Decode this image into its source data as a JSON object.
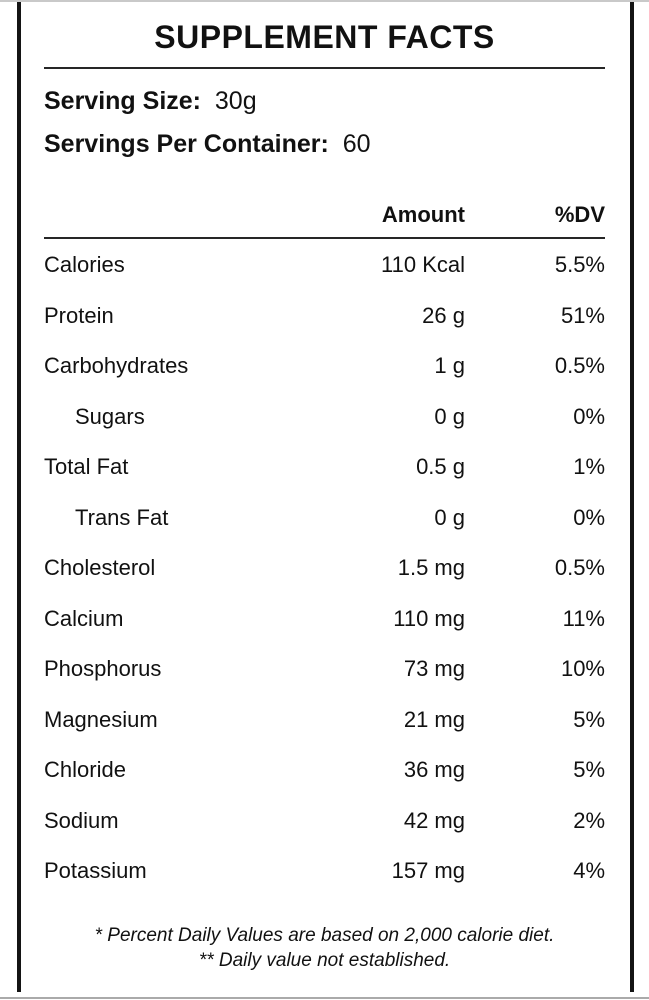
{
  "panel": {
    "title": "SUPPLEMENT FACTS",
    "serving_size": {
      "label": "Serving Size:",
      "value": "30g"
    },
    "servings_per_container": {
      "label": "Servings Per Container:",
      "value": "60"
    },
    "columns": {
      "amount": "Amount",
      "dv": "%DV"
    },
    "rows": [
      {
        "name": "Calories",
        "amount": "110 Kcal",
        "dv": "5.5%",
        "indent": false
      },
      {
        "name": "Protein",
        "amount": "26 g",
        "dv": "51%",
        "indent": false
      },
      {
        "name": "Carbohydrates",
        "amount": "1 g",
        "dv": "0.5%",
        "indent": false
      },
      {
        "name": "Sugars",
        "amount": "0 g",
        "dv": "0%",
        "indent": true
      },
      {
        "name": "Total Fat",
        "amount": "0.5 g",
        "dv": "1%",
        "indent": false
      },
      {
        "name": "Trans Fat",
        "amount": "0 g",
        "dv": "0%",
        "indent": true
      },
      {
        "name": "Cholesterol",
        "amount": "1.5 mg",
        "dv": "0.5%",
        "indent": false
      },
      {
        "name": "Calcium",
        "amount": "110 mg",
        "dv": "11%",
        "indent": false
      },
      {
        "name": "Phosphorus",
        "amount": "73 mg",
        "dv": "10%",
        "indent": false
      },
      {
        "name": "Magnesium",
        "amount": "21 mg",
        "dv": "5%",
        "indent": false
      },
      {
        "name": "Chloride",
        "amount": "36 mg",
        "dv": "5%",
        "indent": false
      },
      {
        "name": "Sodium",
        "amount": "42 mg",
        "dv": "2%",
        "indent": false
      },
      {
        "name": "Potassium",
        "amount": "157 mg",
        "dv": "4%",
        "indent": false
      }
    ],
    "footnotes": [
      "* Percent Daily Values are based on 2,000 calorie diet.",
      "** Daily value not established."
    ],
    "colors": {
      "background": "#ffffff",
      "text": "#111111",
      "border_bar": "#141414",
      "rule": "#262626",
      "hairline_top": "#c9c9c9",
      "hairline_bottom": "#aaaaaa"
    }
  }
}
